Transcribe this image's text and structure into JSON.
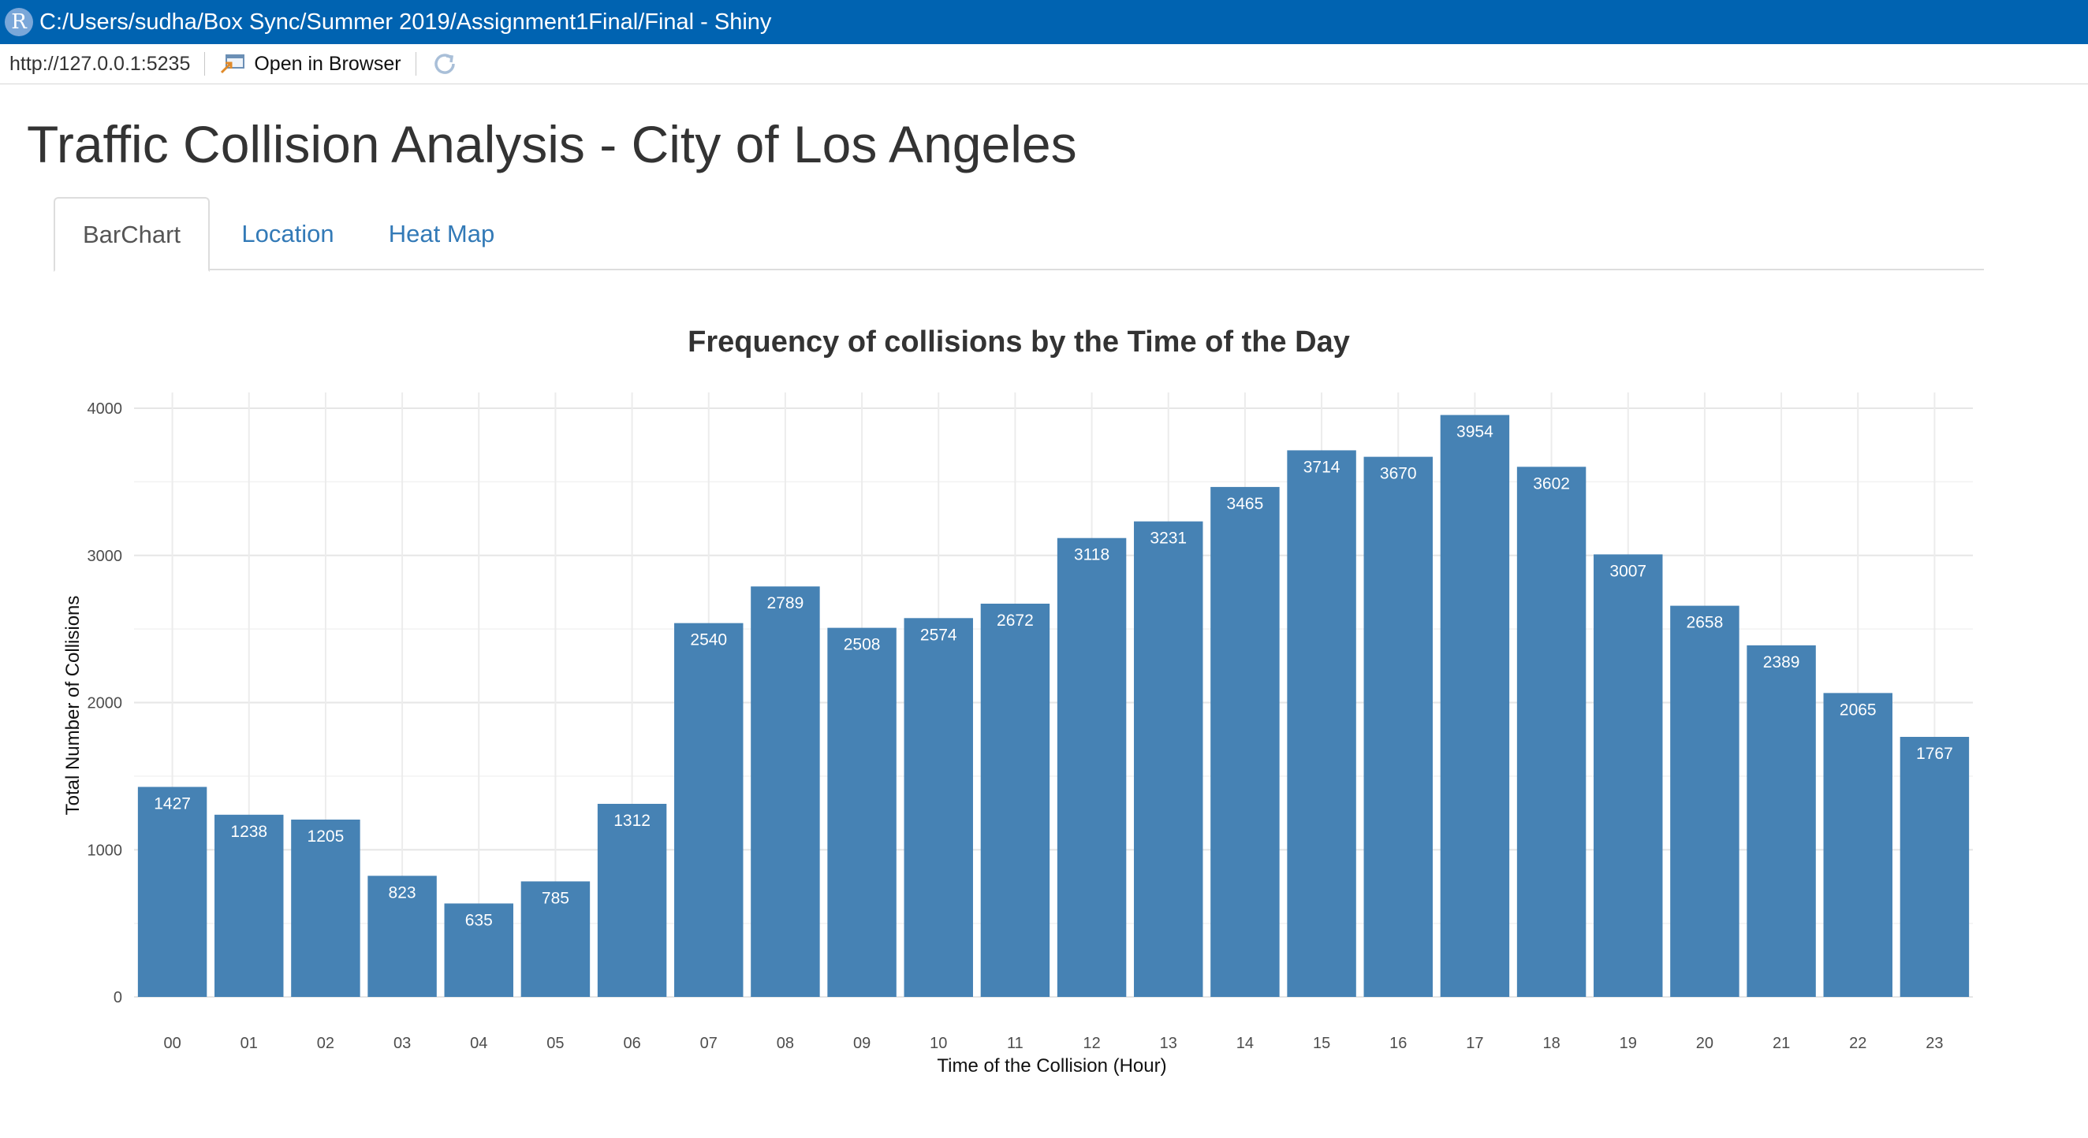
{
  "window": {
    "title": "C:/Users/sudha/Box Sync/Summer 2019/Assignment1Final/Final - Shiny",
    "logo_letter": "R"
  },
  "addressbar": {
    "url": "http://127.0.0.1:5235",
    "open_in_browser_label": "Open in Browser"
  },
  "page": {
    "title": "Traffic Collision Analysis - City of Los Angeles"
  },
  "tabs": [
    {
      "label": "BarChart",
      "active": true
    },
    {
      "label": "Location",
      "active": false
    },
    {
      "label": "Heat Map",
      "active": false
    }
  ],
  "colors": {
    "titlebar": "#0063b1",
    "bar": "#4682b4",
    "link": "#337ab7"
  },
  "chart_data": {
    "type": "bar",
    "title": "Frequency of collisions by the Time of the Day",
    "xlabel": "Time of the Collision (Hour)",
    "ylabel": "Total Number of Collisions",
    "categories": [
      "00",
      "01",
      "02",
      "03",
      "04",
      "05",
      "06",
      "07",
      "08",
      "09",
      "10",
      "11",
      "12",
      "13",
      "14",
      "15",
      "16",
      "17",
      "18",
      "19",
      "20",
      "21",
      "22",
      "23"
    ],
    "values": [
      1427,
      1238,
      1205,
      823,
      635,
      785,
      1312,
      2540,
      2789,
      2508,
      2574,
      2672,
      3118,
      3231,
      3465,
      3714,
      3670,
      3954,
      3602,
      3007,
      2658,
      2389,
      2065,
      1767
    ],
    "yticks": [
      0,
      1000,
      2000,
      3000,
      4000
    ],
    "ylim": [
      0,
      4100
    ],
    "grid": true,
    "bar_color": "#4682b4",
    "data_labels": true
  }
}
